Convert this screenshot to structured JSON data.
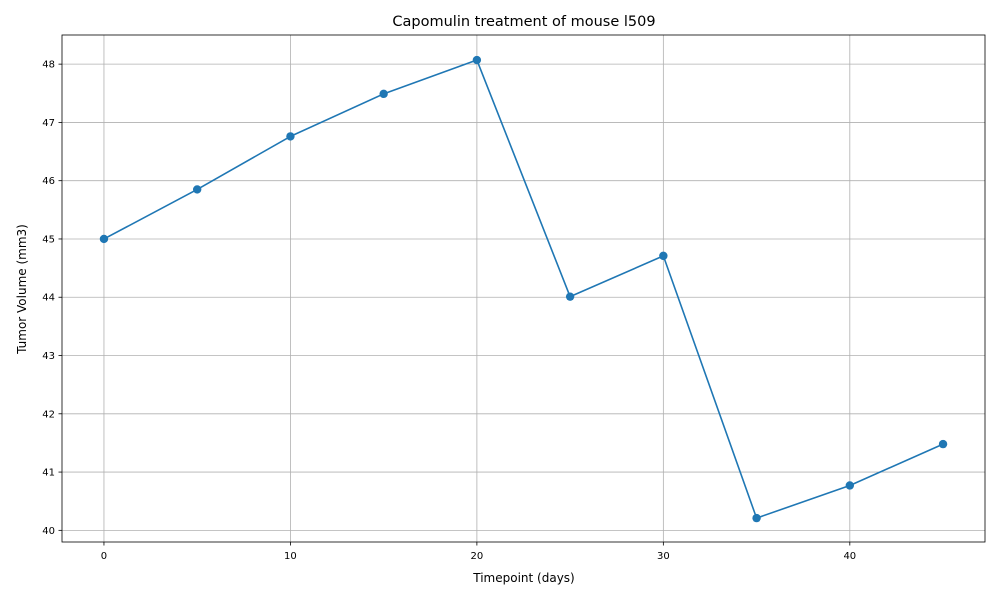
{
  "chart_data": {
    "type": "line",
    "title": "Capomulin treatment of mouse l509",
    "xlabel": "Timepoint (days)",
    "ylabel": "Tumor Volume (mm3)",
    "xlim": [
      -2.25,
      47.25
    ],
    "ylim": [
      39.8,
      48.5
    ],
    "x_ticks": [
      0,
      10,
      20,
      30,
      40
    ],
    "y_ticks": [
      40,
      41,
      42,
      43,
      44,
      45,
      46,
      47,
      48
    ],
    "grid": true,
    "marker": "circle",
    "color": "#1f77b4",
    "series": [
      {
        "x": [
          0,
          5,
          10,
          15,
          20,
          25,
          30,
          35,
          40,
          45
        ],
        "values": [
          45.0,
          45.85,
          46.76,
          47.49,
          48.07,
          44.01,
          44.71,
          40.21,
          40.77,
          41.48
        ]
      }
    ]
  }
}
